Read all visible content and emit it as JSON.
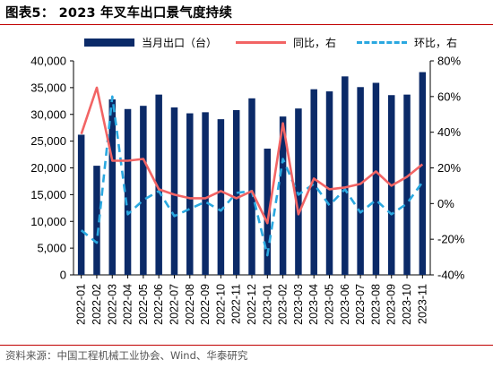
{
  "title": "图表5： 2023 年叉车出口景气度持续",
  "source": "资料来源：中国工程机械工业协会、Wind、华泰研究",
  "legend": {
    "bar_label": "当月出口（台）",
    "line1_label": "同比，右",
    "line2_label": "环比，右"
  },
  "colors": {
    "bar": "#0b2a68",
    "yoy": "#f26464",
    "mom": "#2aa8e0"
  },
  "chart_data": {
    "type": "bar",
    "categories": [
      "2022-01",
      "2022-02",
      "2022-03",
      "2022-04",
      "2022-05",
      "2022-06",
      "2022-07",
      "2022-08",
      "2022-09",
      "2022-10",
      "2022-11",
      "2022-12",
      "2023-01",
      "2023-02",
      "2023-03",
      "2023-04",
      "2023-05",
      "2023-06",
      "2023-07",
      "2023-08",
      "2023-09",
      "2023-10",
      "2023-11"
    ],
    "x_tick_labels": [
      "2022-01",
      "2022-02",
      "2022-03",
      "2022-04",
      "2022-05",
      "2022-06",
      "2022-07",
      "2022-08",
      "2022-09",
      "2022-10",
      "2022-11",
      "2022-12",
      "2023-01",
      "2023-02",
      "2023-03",
      "2023-04",
      "2023-05",
      "2023-06",
      "2023-07",
      "2023-08",
      "2023-09",
      "2023-10",
      "2023-11"
    ],
    "series": [
      {
        "name": "当月出口（台）",
        "type": "bar",
        "axis": "left",
        "values": [
          26200,
          20400,
          32800,
          31000,
          31600,
          33700,
          31300,
          30200,
          30400,
          29100,
          30800,
          33000,
          23600,
          29600,
          31100,
          34700,
          34300,
          37100,
          35100,
          35900,
          33600,
          33700,
          37900
        ]
      },
      {
        "name": "同比，右",
        "type": "line",
        "axis": "right",
        "style": "solid",
        "values": [
          39,
          65,
          24,
          24,
          25,
          8,
          5,
          3,
          3,
          7,
          3,
          7,
          -11,
          45,
          -6,
          14,
          8,
          9,
          11,
          18,
          10,
          15,
          22
        ]
      },
      {
        "name": "环比，右",
        "type": "line",
        "axis": "right",
        "style": "dashed",
        "values": [
          -15,
          -22,
          60,
          -6,
          2,
          7,
          -7,
          -3,
          1,
          -4,
          6,
          7,
          -29,
          25,
          5,
          11,
          -1,
          8,
          -5,
          2,
          -6,
          0,
          12
        ]
      }
    ],
    "y_left": {
      "ylim": [
        0,
        40000
      ],
      "ticks": [
        "0",
        "5,000",
        "10,000",
        "15,000",
        "20,000",
        "25,000",
        "30,000",
        "35,000",
        "40,000"
      ]
    },
    "y_right": {
      "ylim": [
        -40,
        80
      ],
      "ticks": [
        "-40%",
        "-20%",
        "0%",
        "20%",
        "40%",
        "60%",
        "80%"
      ]
    },
    "legend_position": "top",
    "grid": false
  }
}
